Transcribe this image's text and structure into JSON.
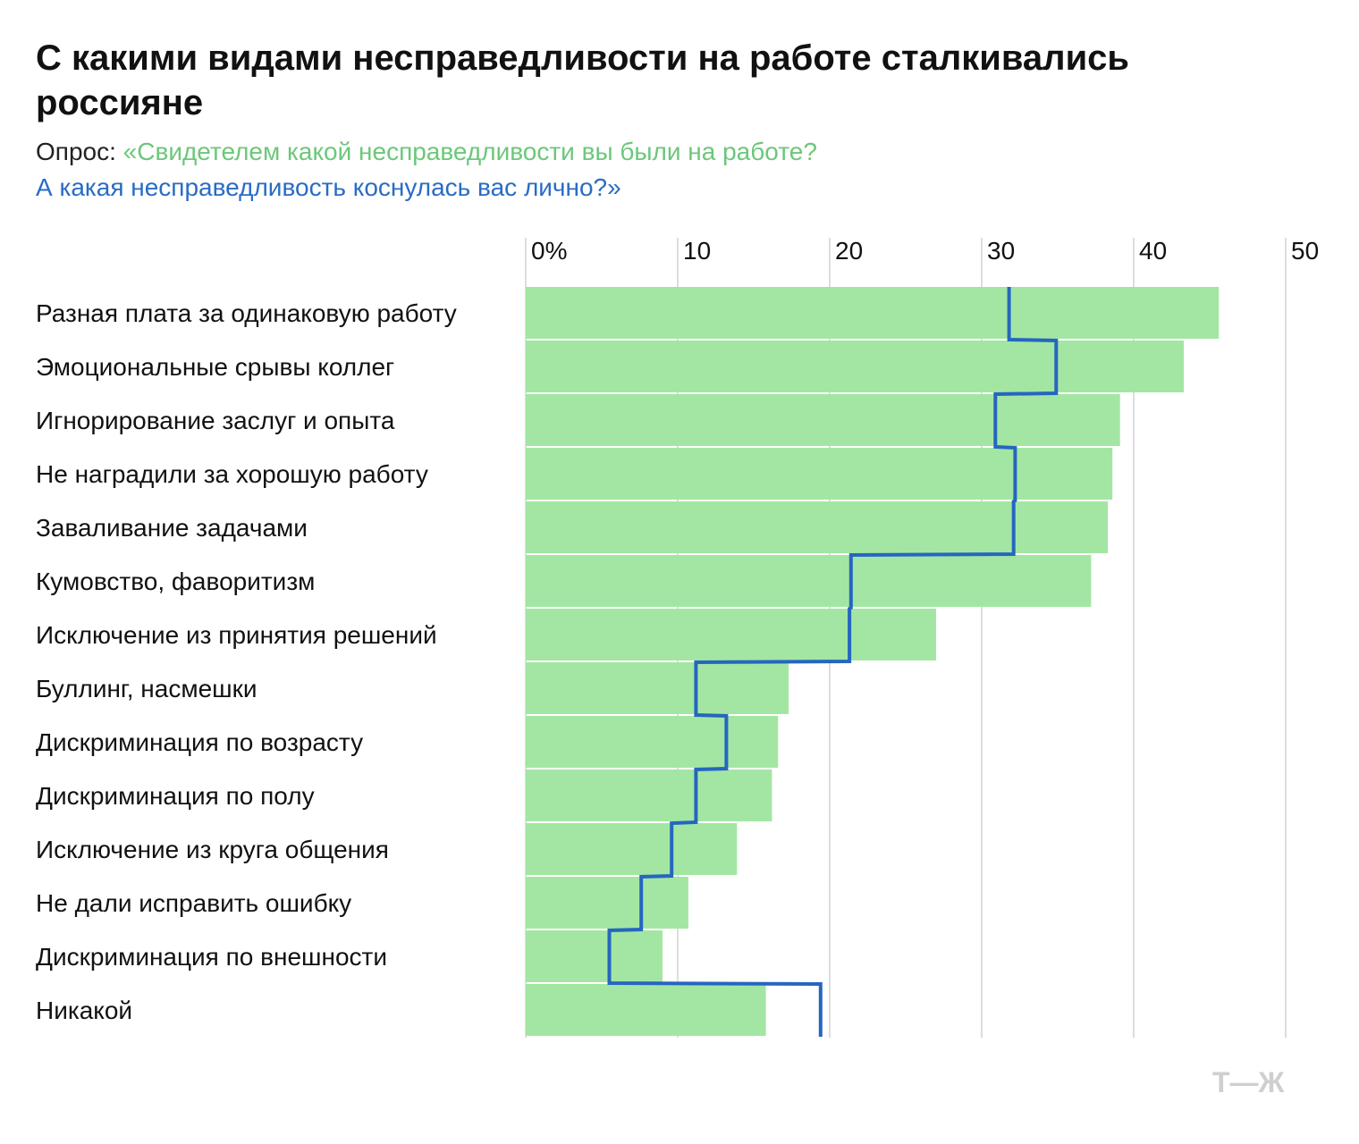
{
  "title": "С какими видами несправедливости на работе сталкивались россияне",
  "subtitle": {
    "lead": "Опрос: ",
    "question_1": "«Свидетелем какой несправедливости вы были на работе?",
    "question_2": "А какая несправедливость коснулась вас лично?»"
  },
  "colors": {
    "bar_fill": "#a3e6a3",
    "line": "#2566c0",
    "grid": "#dddddd",
    "question_1_text": "#6cc77a",
    "question_2_text": "#2a6cc4",
    "logo": "#cfcfcf"
  },
  "logo_text": "Т—Ж",
  "chart_data": {
    "type": "bar",
    "orientation": "horizontal",
    "categories": [
      "Разная плата за одинаковую работу",
      "Эмоциональные срывы коллег",
      "Игнорирование заслуг и опыта",
      "Не наградили за хорошую работу",
      "Заваливание задачами",
      "Кумовство, фаворитизм",
      "Исключение из принятия решений",
      "Буллинг, насмешки",
      "Дискриминация по возрасту",
      "Дискриминация по полу",
      "Исключение из круга общения",
      "Не дали исправить ошибку",
      "Дискриминация по внешности",
      "Никакой"
    ],
    "series": [
      {
        "type": "bar",
        "values": [
          45.6,
          43.3,
          39.1,
          38.6,
          38.3,
          37.2,
          27.0,
          17.3,
          16.6,
          16.2,
          13.9,
          10.7,
          9.0,
          15.8
        ]
      },
      {
        "type": "step-line",
        "values": [
          31.8,
          34.9,
          30.9,
          32.2,
          32.1,
          21.4,
          21.3,
          11.2,
          13.2,
          11.2,
          9.6,
          7.6,
          5.5,
          19.4
        ]
      }
    ],
    "xlim": [
      0,
      50
    ],
    "xticks": [
      0,
      10,
      20,
      30,
      40,
      50
    ],
    "xtick_labels": [
      "0%",
      "10",
      "20",
      "30",
      "40",
      "50"
    ],
    "grid": true,
    "legend": "none"
  }
}
